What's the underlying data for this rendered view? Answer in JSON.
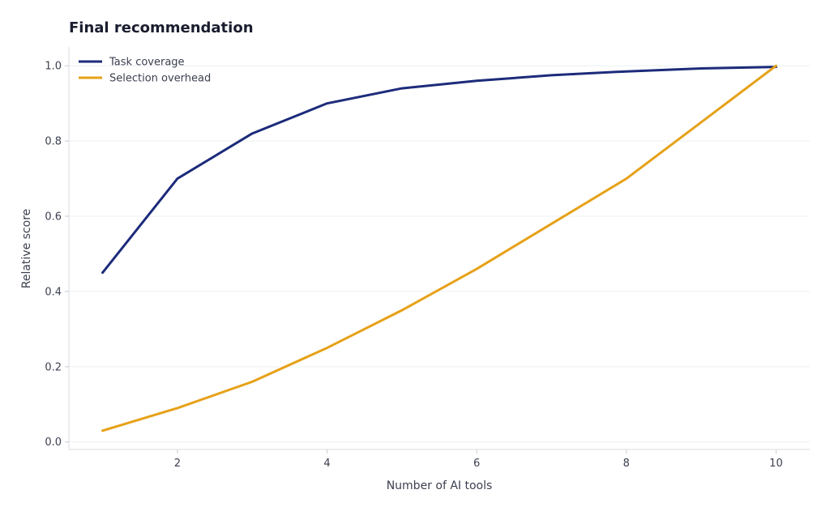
{
  "chart_data": {
    "type": "line",
    "title": "Final recommendation",
    "xlabel": "Number of AI tools",
    "ylabel": "Relative score",
    "xlim": [
      0.55,
      10.45
    ],
    "ylim": [
      -0.02,
      1.05
    ],
    "xticks": [
      2,
      4,
      6,
      8,
      10
    ],
    "yticks": [
      0.0,
      0.2,
      0.4,
      0.6,
      0.8,
      1.0
    ],
    "xtick_labels": [
      "2",
      "4",
      "6",
      "8",
      "10"
    ],
    "ytick_labels": [
      "0.0",
      "0.2",
      "0.4",
      "0.6",
      "0.8",
      "1.0"
    ],
    "grid": true,
    "legend_position": "top-left",
    "x": [
      1,
      2,
      3,
      4,
      5,
      6,
      7,
      8,
      9,
      10
    ],
    "series": [
      {
        "name": "Task coverage",
        "color": "#1c2b7a",
        "values": [
          0.45,
          0.7,
          0.82,
          0.9,
          0.94,
          0.96,
          0.975,
          0.985,
          0.993,
          0.997
        ]
      },
      {
        "name": "Selection overhead",
        "color": "#e6a117",
        "values": [
          0.03,
          0.09,
          0.16,
          0.25,
          0.35,
          0.46,
          0.58,
          0.7,
          0.85,
          1.0
        ]
      }
    ]
  }
}
